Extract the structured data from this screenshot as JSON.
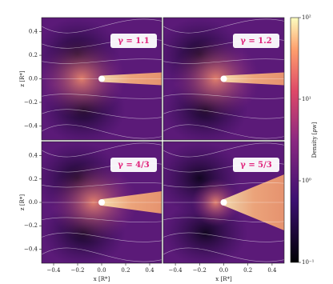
{
  "chart_data": [
    {
      "type": "heatmap",
      "title": "γ = 1.1",
      "ylabel": "z [R*]",
      "xlim": [
        -0.5,
        0.5
      ],
      "ylim": [
        -0.52,
        0.52
      ],
      "yticks": [
        {
          "value": -0.4,
          "label": "−0.4"
        },
        {
          "value": -0.2,
          "label": "−0.2"
        },
        {
          "value": 0,
          "label": "0.0"
        },
        0.2,
        0.4
      ]
    },
    {
      "type": "heatmap",
      "title": "γ = 1.2",
      "xlim": [
        -0.5,
        0.5
      ],
      "ylim": [
        -0.52,
        0.52
      ]
    },
    {
      "type": "heatmap",
      "title": "γ = 4/3",
      "xlabel": "x [R*]",
      "ylabel": "z [R*]",
      "xlim": [
        -0.5,
        0.5
      ],
      "ylim": [
        -0.52,
        0.52
      ],
      "xticks": [
        {
          "value": -0.4,
          "label": "−0.4"
        },
        {
          "value": -0.2,
          "label": "−0.2"
        },
        {
          "value": 0,
          "label": "0.0"
        },
        0.2,
        0.4
      ],
      "yticks": [
        {
          "value": -0.4,
          "label": "−0.4"
        },
        {
          "value": -0.2,
          "label": "−0.2"
        },
        {
          "value": 0,
          "label": "0.0"
        },
        0.2,
        0.4
      ]
    },
    {
      "type": "heatmap",
      "title": "γ = 5/3",
      "xlabel": "x [R*]",
      "xlim": [
        -0.5,
        0.5
      ],
      "ylim": [
        -0.52,
        0.52
      ],
      "xticks": [
        {
          "value": -0.4,
          "label": "−0.4"
        },
        {
          "value": -0.2,
          "label": "−0.2"
        },
        {
          "value": 0,
          "label": "0.0"
        },
        0.2,
        0.4
      ]
    }
  ],
  "colorbar": {
    "label": "Density [ρw]",
    "log_scale": true,
    "lim": [
      0.1,
      100
    ],
    "ticks": [
      {
        "value": 0.1,
        "label": "10⁻¹"
      },
      {
        "value": 1,
        "label": "10⁰"
      },
      {
        "value": 10,
        "label": "10¹"
      },
      {
        "value": 100,
        "label": "10²"
      }
    ]
  }
}
